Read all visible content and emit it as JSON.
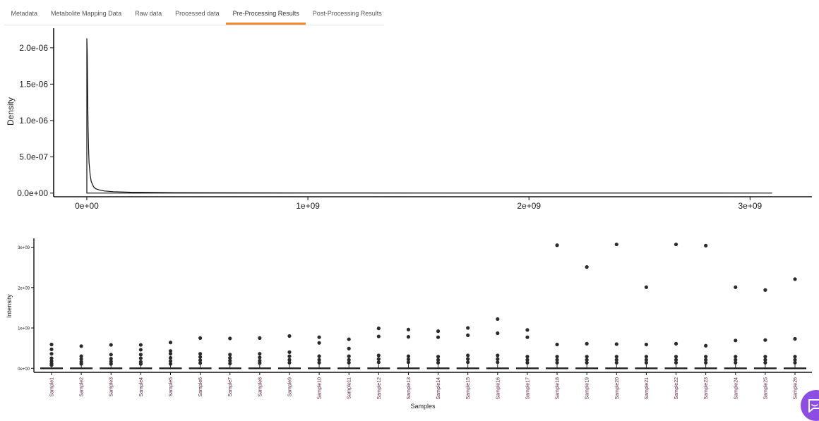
{
  "tabs": [
    {
      "label": "Metadata",
      "active": false
    },
    {
      "label": "Metabolite Mapping Data",
      "active": false
    },
    {
      "label": "Raw data",
      "active": false
    },
    {
      "label": "Processed data",
      "active": false
    },
    {
      "label": "Pre-Processing Results",
      "active": true
    },
    {
      "label": "Post-Processing Results",
      "active": false
    }
  ],
  "accent_color": "#f08c2e",
  "chat_color": "#8c4de3",
  "chart_data": [
    {
      "type": "line",
      "xlabel": "",
      "ylabel": "Density",
      "xlim": [
        -150000000,
        3280000000
      ],
      "ylim": [
        -50000000,
        2270000000
      ],
      "x_ticks": [
        0,
        1000000000,
        2000000000,
        3000000000
      ],
      "x_tick_labels": [
        "0e+00",
        "1e+09",
        "2e+09",
        "3e+09"
      ],
      "y_ticks": [
        0,
        0.5,
        1.0,
        1.5,
        2.0
      ],
      "y_tick_labels": [
        "0.0e+00",
        "5.0e-07",
        "1.0e-06",
        "1.5e-06",
        "2.0e-06"
      ],
      "y_unit_scale": 1e-06,
      "series": [
        {
          "x": [
            0,
            2000000,
            4000000,
            6000000,
            8000000,
            10000000,
            15000000,
            20000000,
            30000000,
            40000000,
            60000000,
            80000000,
            120000000,
            200000000,
            400000000,
            1000000000,
            2000000000,
            3100000000
          ],
          "y": [
            2.13,
            1.9,
            1.3,
            0.9,
            0.6,
            0.42,
            0.25,
            0.16,
            0.09,
            0.06,
            0.04,
            0.03,
            0.02,
            0.012,
            0.006,
            0.002,
            0.001,
            0.0005
          ]
        }
      ],
      "grid": false,
      "legend": "none"
    },
    {
      "type": "box",
      "xlabel": "Samples",
      "ylabel": "Intensity",
      "ylim": [
        -100000000,
        3220000000
      ],
      "y_ticks": [
        0,
        1000000000,
        2000000000,
        3000000000
      ],
      "y_tick_labels": [
        "0e+00",
        "1e+09",
        "2e+09",
        "3e+09"
      ],
      "categories": [
        "Sample1",
        "Sample2",
        "Sample3",
        "Sample4",
        "Sample5",
        "Sample6",
        "Sample7",
        "Sample8",
        "Sample9",
        "Sample10",
        "Sample11",
        "Sample12",
        "Sample13",
        "Sample14",
        "Sample15",
        "Sample16",
        "Sample17",
        "Sample18",
        "Sample19",
        "Sample20",
        "Sample21",
        "Sample22",
        "Sample23",
        "Sample24",
        "Sample25",
        "Sample26"
      ],
      "outliers": [
        [
          590000000,
          470000000,
          360000000,
          250000000,
          180000000,
          120000000,
          80000000
        ],
        [
          550000000,
          300000000,
          230000000,
          160000000,
          110000000
        ],
        [
          580000000,
          340000000,
          240000000,
          170000000,
          110000000
        ],
        [
          580000000,
          460000000,
          340000000,
          250000000,
          160000000,
          110000000
        ],
        [
          640000000,
          430000000,
          360000000,
          260000000,
          180000000,
          110000000
        ],
        [
          750000000,
          360000000,
          280000000,
          200000000,
          130000000
        ],
        [
          740000000,
          340000000,
          260000000,
          190000000,
          120000000
        ],
        [
          750000000,
          360000000,
          270000000,
          190000000,
          130000000
        ],
        [
          800000000,
          400000000,
          300000000,
          210000000,
          140000000
        ],
        [
          770000000,
          630000000,
          300000000,
          210000000,
          140000000
        ],
        [
          720000000,
          490000000,
          300000000,
          210000000,
          140000000
        ],
        [
          990000000,
          790000000,
          320000000,
          230000000,
          150000000
        ],
        [
          960000000,
          780000000,
          300000000,
          220000000,
          150000000
        ],
        [
          920000000,
          770000000,
          290000000,
          210000000,
          140000000
        ],
        [
          1000000000,
          820000000,
          320000000,
          230000000,
          150000000
        ],
        [
          1220000000,
          870000000,
          320000000,
          230000000,
          150000000
        ],
        [
          950000000,
          770000000,
          290000000,
          210000000,
          140000000
        ],
        [
          3050000000,
          590000000,
          290000000,
          210000000,
          140000000
        ],
        [
          2510000000,
          610000000,
          290000000,
          210000000,
          140000000
        ],
        [
          3070000000,
          600000000,
          290000000,
          210000000,
          140000000
        ],
        [
          2010000000,
          590000000,
          290000000,
          210000000,
          140000000
        ],
        [
          3070000000,
          610000000,
          290000000,
          210000000,
          140000000
        ],
        [
          3040000000,
          560000000,
          290000000,
          210000000,
          140000000
        ],
        [
          2010000000,
          690000000,
          290000000,
          210000000,
          140000000
        ],
        [
          1940000000,
          700000000,
          290000000,
          210000000,
          140000000
        ],
        [
          2210000000,
          730000000,
          290000000,
          210000000,
          140000000
        ]
      ],
      "grid": false,
      "legend": "none"
    }
  ]
}
